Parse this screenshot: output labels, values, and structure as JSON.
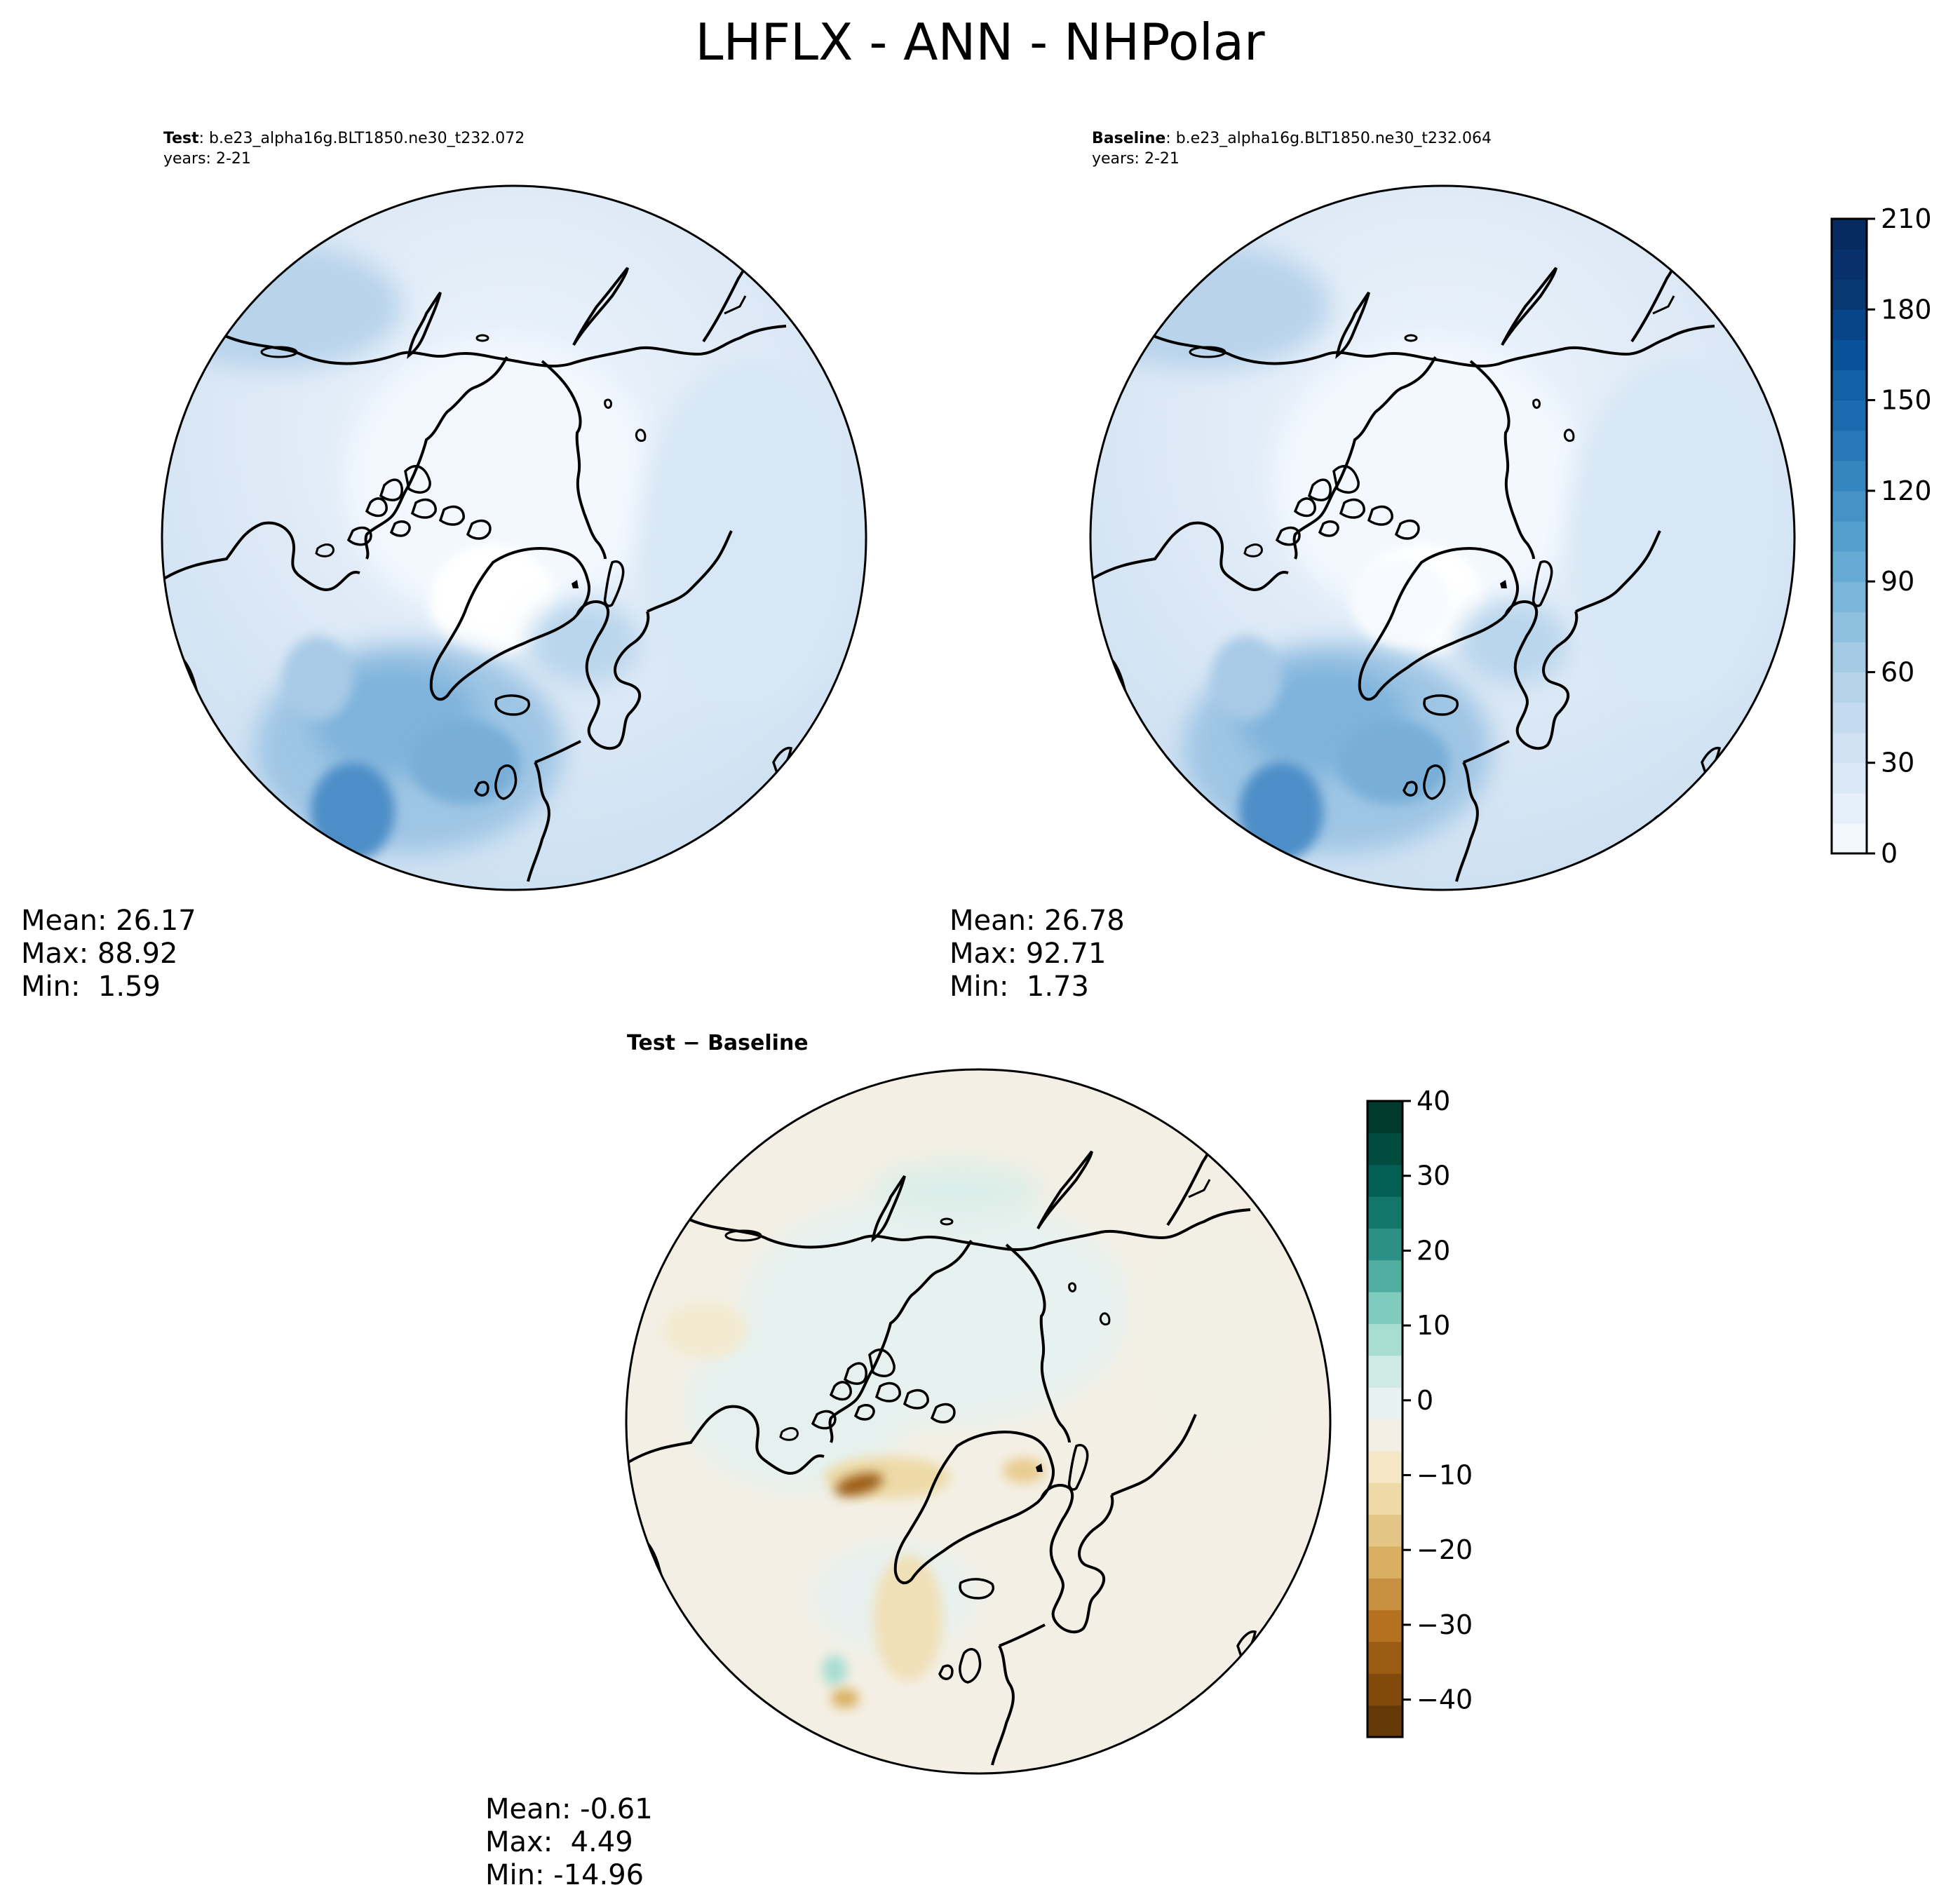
{
  "figure": {
    "title": "LHFLX - ANN - NHPolar"
  },
  "panels": {
    "test": {
      "label": "Test",
      "case": ": b.e23_alpha16g.BLT1850.ne30_t232.072",
      "years": "years: 2-21",
      "stats": {
        "mean": "Mean: 26.17",
        "max": "Max: 88.92",
        "min": "Min:  1.59"
      }
    },
    "baseline": {
      "label": "Baseline",
      "case": ": b.e23_alpha16g.BLT1850.ne30_t232.064",
      "years": "years: 2-21",
      "stats": {
        "mean": "Mean: 26.78",
        "max": "Max: 92.71",
        "min": "Min:  1.73"
      }
    },
    "diff": {
      "title_left": "Test",
      "title_sep": " − ",
      "title_right": "Baseline",
      "stats": {
        "mean": "Mean: -0.61",
        "max": "Max:  4.49",
        "min": "Min: -14.96"
      }
    }
  },
  "chart_data": [
    {
      "type": "heatmap",
      "projection": "north-polar-stereographic",
      "panel": "test",
      "variable": "LHFLX",
      "season": "ANN",
      "summary": {
        "mean": 26.17,
        "max": 88.92,
        "min": 1.59
      }
    },
    {
      "type": "heatmap",
      "projection": "north-polar-stereographic",
      "panel": "baseline",
      "variable": "LHFLX",
      "season": "ANN",
      "summary": {
        "mean": 26.78,
        "max": 92.71,
        "min": 1.73
      }
    },
    {
      "type": "heatmap",
      "projection": "north-polar-stereographic",
      "panel": "diff",
      "variable": "LHFLX",
      "season": "ANN",
      "summary": {
        "mean": -0.61,
        "max": 4.49,
        "min": -14.96
      }
    }
  ],
  "colorbars": {
    "main": {
      "range": [
        0,
        210
      ],
      "tick_values": [
        0,
        30,
        60,
        90,
        120,
        150,
        180,
        210
      ],
      "tick_labels": [
        "0",
        "30",
        "60",
        "90",
        "120",
        "150",
        "180",
        "210"
      ],
      "colors": [
        "#f3f8fe",
        "#e6f0fa",
        "#dbe9f6",
        "#cfe1f2",
        "#c4daee",
        "#b5d4e9",
        "#a4cbe3",
        "#8fc1de",
        "#7ab6d9",
        "#66abd4",
        "#559fcd",
        "#4592c6",
        "#3585bf",
        "#2979b9",
        "#1c6bb0",
        "#1260a6",
        "#08529a",
        "#084588",
        "#083872",
        "#08306b",
        "#072a60"
      ]
    },
    "diff": {
      "range": [
        -45,
        40
      ],
      "tick_values": [
        40,
        30,
        20,
        10,
        0,
        -10,
        -20,
        -30,
        -40
      ],
      "tick_labels": [
        "40",
        "30",
        "20",
        "10",
        "0",
        "−10",
        "−20",
        "−30",
        "−40"
      ],
      "colors": [
        "#653a07",
        "#814a0c",
        "#9b5b13",
        "#b4711f",
        "#c79043",
        "#d9b061",
        "#e3c685",
        "#eddaa7",
        "#f5e7c6",
        "#f3efe4",
        "#e7f1ef",
        "#cfeae4",
        "#a8ddd2",
        "#7fcbbd",
        "#50aea0",
        "#2d9086",
        "#14766b",
        "#016053",
        "#014b3f",
        "#01392e"
      ]
    }
  }
}
